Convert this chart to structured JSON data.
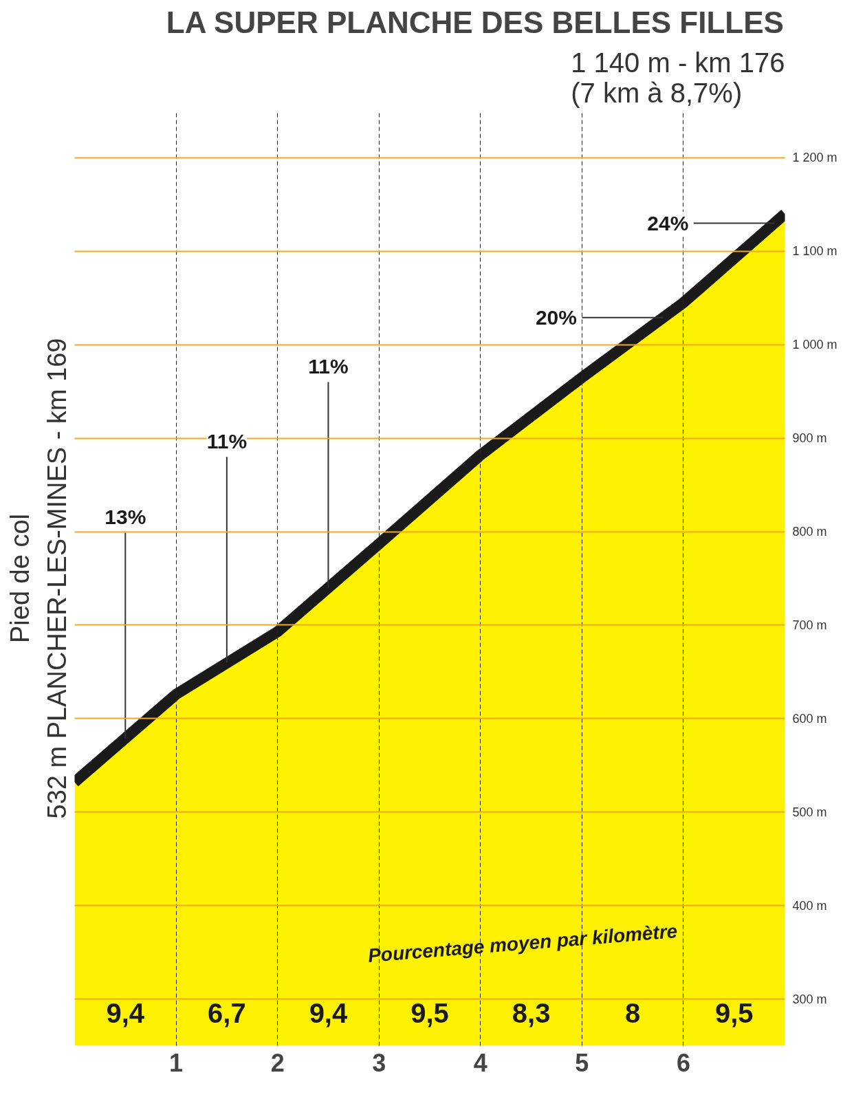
{
  "chart_data": {
    "type": "area",
    "title": "LA SUPER PLANCHE DES BELLES FILLES",
    "subtitle": "1 140 m - km 176\n(7 km à 8,7%)",
    "x": [
      0,
      1,
      2,
      3,
      4,
      5,
      6,
      7
    ],
    "series": [
      {
        "color": "#fff200",
        "values": [
          532,
          626,
          693,
          787,
          882,
          965,
          1045,
          1140
        ]
      }
    ],
    "xlim": [
      0,
      7
    ],
    "xticks": [
      1,
      2,
      3,
      4,
      5,
      6
    ],
    "ylim": [
      250,
      1250
    ],
    "yticks": [
      {
        "value": 300,
        "label": "300 m"
      },
      {
        "value": 400,
        "label": "400 m"
      },
      {
        "value": 500,
        "label": "500 m"
      },
      {
        "value": 600,
        "label": "600 m"
      },
      {
        "value": 700,
        "label": "700 m"
      },
      {
        "value": 800,
        "label": "800 m"
      },
      {
        "value": 900,
        "label": "900 m"
      },
      {
        "value": 1000,
        "label": "1 000 m"
      },
      {
        "value": 1100,
        "label": "1 100 m"
      },
      {
        "value": 1200,
        "label": "1 200 m"
      }
    ],
    "grid": true,
    "annotations": [
      "532 m PLANCHER-LES-MINES - km 169",
      "Pied de col",
      "Pourcentage moyen par kilomètre",
      "9,4",
      "6,7",
      "9,4",
      "9,5",
      "8,3",
      "8",
      "9,5",
      {
        "text": "13%",
        "x": 0.5,
        "y": 579
      },
      {
        "text": "11%",
        "x": 1.5,
        "y": 660
      },
      {
        "text": "11%",
        "x": 2.5,
        "y": 740
      },
      {
        "text": "20%",
        "x": 5.8,
        "y": 1029
      },
      {
        "text": "24%",
        "x": 6.9,
        "y": 1130
      }
    ]
  }
}
